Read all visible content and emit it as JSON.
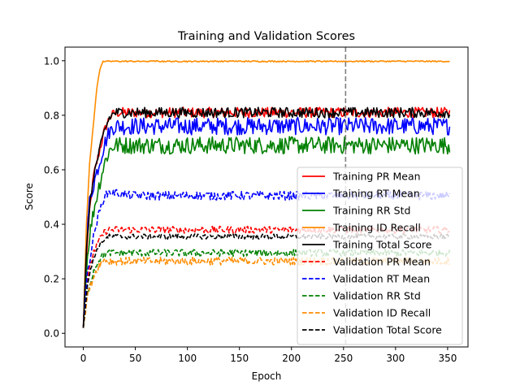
{
  "chart_data": {
    "type": "line",
    "title": "Training and Validation Scores",
    "xlabel": "Epoch",
    "ylabel": "Score",
    "xlim": [
      -17.6,
      369.6
    ],
    "ylim": [
      -0.05,
      1.05
    ],
    "xticks": [
      0,
      50,
      100,
      150,
      200,
      250,
      300,
      350
    ],
    "yticks": [
      0.0,
      0.2,
      0.4,
      0.6,
      0.8,
      1.0
    ],
    "xtick_labels": [
      "0",
      "50",
      "100",
      "150",
      "200",
      "250",
      "300",
      "350"
    ],
    "ytick_labels": [
      "0.0",
      "0.2",
      "0.4",
      "0.6",
      "0.8",
      "1.0"
    ],
    "grid": false,
    "legend_position": "lower-right",
    "vline": {
      "x": 252,
      "color": "#7f7f7f",
      "style": "dashed"
    },
    "epochs": 352,
    "series": [
      {
        "name": "Training PR Mean",
        "color": "#ff0000",
        "style": "solid",
        "plateau": 0.81,
        "noise": 0.012,
        "ramp": [
          [
            0,
            0.02
          ],
          [
            3,
            0.28
          ],
          [
            6,
            0.45
          ],
          [
            10,
            0.58
          ],
          [
            15,
            0.66
          ],
          [
            20,
            0.74
          ],
          [
            25,
            0.79
          ],
          [
            30,
            0.81
          ]
        ]
      },
      {
        "name": "Training RT Mean",
        "color": "#0000ff",
        "style": "solid",
        "plateau": 0.76,
        "noise": 0.02,
        "ramp": [
          [
            0,
            0.02
          ],
          [
            3,
            0.36
          ],
          [
            6,
            0.48
          ],
          [
            10,
            0.55
          ],
          [
            15,
            0.62
          ],
          [
            20,
            0.69
          ],
          [
            25,
            0.74
          ],
          [
            30,
            0.76
          ]
        ]
      },
      {
        "name": "Training RR Std",
        "color": "#008000",
        "style": "solid",
        "plateau": 0.69,
        "noise": 0.02,
        "ramp": [
          [
            0,
            0.02
          ],
          [
            3,
            0.24
          ],
          [
            6,
            0.36
          ],
          [
            10,
            0.45
          ],
          [
            15,
            0.54
          ],
          [
            20,
            0.62
          ],
          [
            25,
            0.67
          ],
          [
            30,
            0.69
          ]
        ]
      },
      {
        "name": "Training ID Recall",
        "color": "#ff8c00",
        "style": "solid",
        "plateau": 0.998,
        "noise": 0.0015,
        "ramp": [
          [
            0,
            0.02
          ],
          [
            3,
            0.4
          ],
          [
            6,
            0.62
          ],
          [
            10,
            0.78
          ],
          [
            13,
            0.9
          ],
          [
            16,
            0.97
          ],
          [
            19,
            1.0
          ]
        ]
      },
      {
        "name": "Training Total Score",
        "color": "#000000",
        "style": "solid",
        "plateau": 0.81,
        "noise": 0.012,
        "ramp": [
          [
            0,
            0.02
          ],
          [
            3,
            0.3
          ],
          [
            6,
            0.46
          ],
          [
            10,
            0.58
          ],
          [
            15,
            0.66
          ],
          [
            20,
            0.74
          ],
          [
            25,
            0.79
          ],
          [
            30,
            0.81
          ]
        ]
      },
      {
        "name": "Validation PR Mean",
        "color": "#ff0000",
        "style": "dashed",
        "plateau": 0.38,
        "noise": 0.008,
        "ramp": [
          [
            0,
            0.02
          ],
          [
            4,
            0.2
          ],
          [
            10,
            0.3
          ],
          [
            15,
            0.34
          ],
          [
            20,
            0.37
          ],
          [
            25,
            0.38
          ]
        ]
      },
      {
        "name": "Validation RT Mean",
        "color": "#0000ff",
        "style": "dashed",
        "plateau": 0.505,
        "noise": 0.01,
        "ramp": [
          [
            0,
            0.02
          ],
          [
            4,
            0.22
          ],
          [
            10,
            0.36
          ],
          [
            15,
            0.44
          ],
          [
            20,
            0.5
          ],
          [
            25,
            0.52
          ],
          [
            40,
            0.51
          ]
        ]
      },
      {
        "name": "Validation RR Std",
        "color": "#008000",
        "style": "dashed",
        "plateau": 0.295,
        "noise": 0.008,
        "ramp": [
          [
            0,
            0.02
          ],
          [
            4,
            0.15
          ],
          [
            10,
            0.23
          ],
          [
            15,
            0.27
          ],
          [
            20,
            0.29
          ],
          [
            25,
            0.295
          ]
        ]
      },
      {
        "name": "Validation ID Recall",
        "color": "#ff8c00",
        "style": "dashed",
        "plateau": 0.265,
        "noise": 0.009,
        "ramp": [
          [
            0,
            0.02
          ],
          [
            4,
            0.14
          ],
          [
            10,
            0.21
          ],
          [
            15,
            0.25
          ],
          [
            20,
            0.27
          ],
          [
            25,
            0.265
          ]
        ]
      },
      {
        "name": "Validation Total Score",
        "color": "#000000",
        "style": "dashed",
        "plateau": 0.355,
        "noise": 0.006,
        "ramp": [
          [
            0,
            0.02
          ],
          [
            4,
            0.18
          ],
          [
            10,
            0.28
          ],
          [
            15,
            0.32
          ],
          [
            20,
            0.345
          ],
          [
            25,
            0.355
          ]
        ]
      }
    ]
  }
}
